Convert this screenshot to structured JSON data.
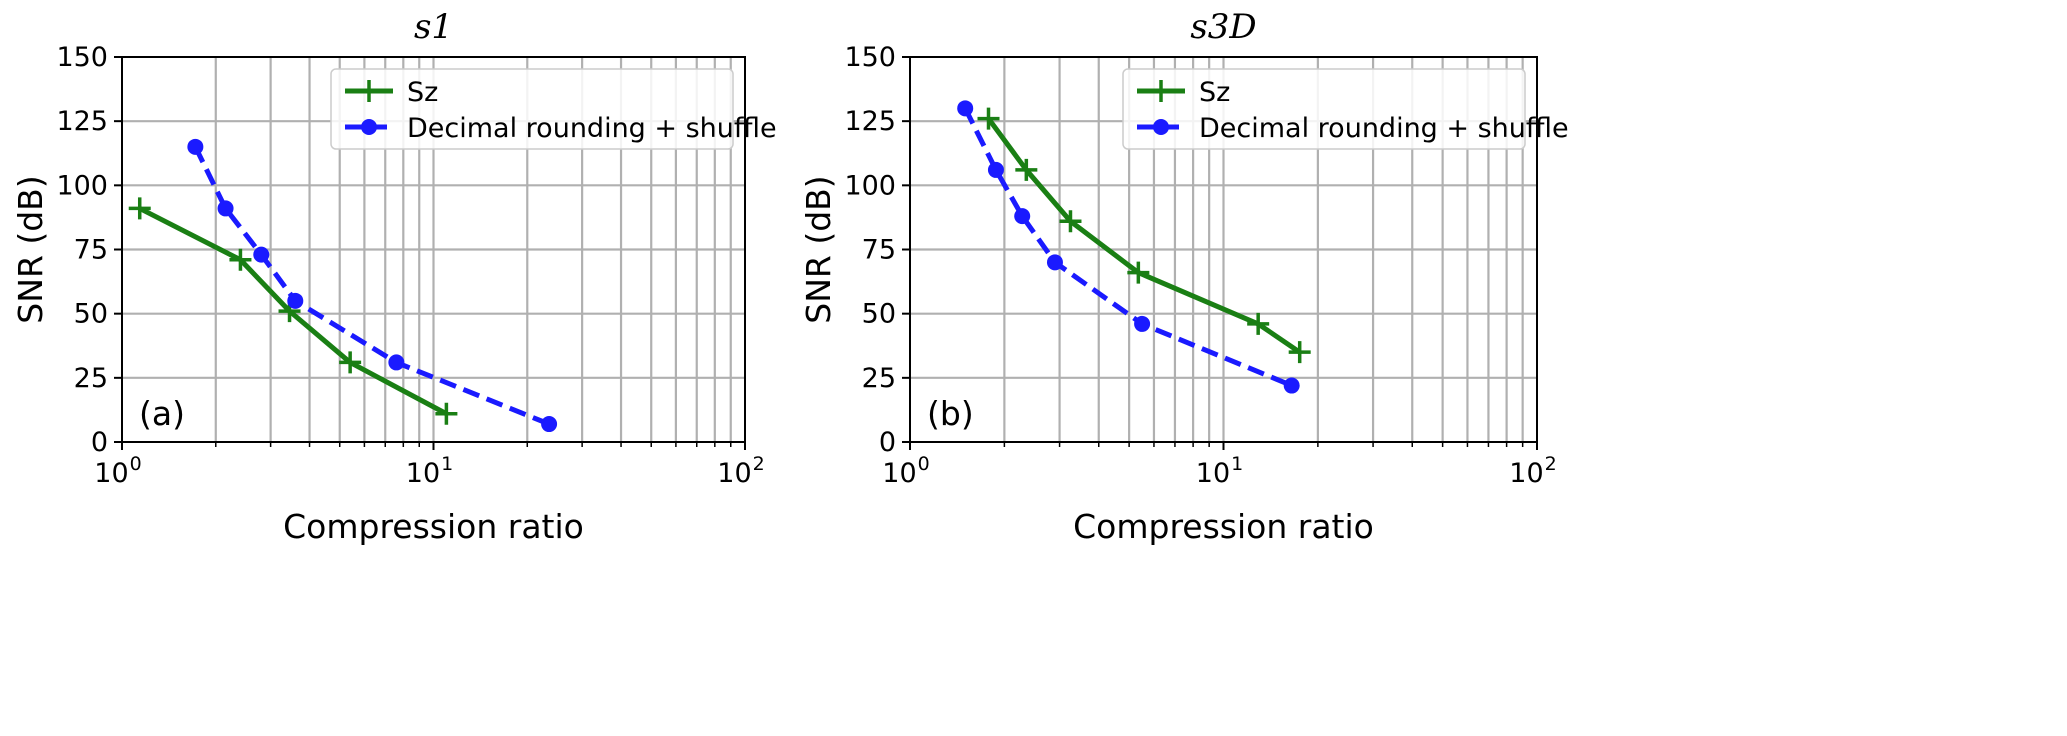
{
  "chart_data": [
    {
      "type": "line",
      "title": "s1",
      "xlabel": "Compression ratio",
      "ylabel": "SNR (dB)",
      "xscale": "log",
      "xlim": [
        1,
        100
      ],
      "ylim": [
        0,
        150
      ],
      "xticks": [
        {
          "base": "10",
          "exp": "0",
          "value": 1
        },
        {
          "base": "10",
          "exp": "1",
          "value": 10
        },
        {
          "base": "10",
          "exp": "2",
          "value": 100
        }
      ],
      "yticks": [
        0,
        25,
        50,
        75,
        100,
        125,
        150
      ],
      "grid": true,
      "legend_position": "top-right",
      "annotation": "(a)",
      "series": [
        {
          "name": "Sz",
          "color": "#1a7f14",
          "linestyle": "solid",
          "marker": "plus",
          "x": [
            1.14,
            2.4,
            3.45,
            5.4,
            11.0
          ],
          "y": [
            91,
            71,
            51,
            31,
            11
          ]
        },
        {
          "name": "Decimal rounding + shuffle",
          "color": "#1a1aff",
          "linestyle": "dashed",
          "marker": "circle",
          "x": [
            1.72,
            2.15,
            2.8,
            3.6,
            7.6,
            23.5
          ],
          "y": [
            115,
            91,
            73,
            55,
            31,
            7
          ]
        }
      ]
    },
    {
      "type": "line",
      "title": "s3D",
      "xlabel": "Compression ratio",
      "ylabel": "SNR (dB)",
      "xscale": "log",
      "xlim": [
        1,
        100
      ],
      "ylim": [
        0,
        150
      ],
      "xticks": [
        {
          "base": "10",
          "exp": "0",
          "value": 1
        },
        {
          "base": "10",
          "exp": "1",
          "value": 10
        },
        {
          "base": "10",
          "exp": "2",
          "value": 100
        }
      ],
      "yticks": [
        0,
        25,
        50,
        75,
        100,
        125,
        150
      ],
      "grid": true,
      "legend_position": "top-right",
      "annotation": "(b)",
      "series": [
        {
          "name": "Sz",
          "color": "#1a7f14",
          "linestyle": "solid",
          "marker": "plus",
          "x": [
            1.78,
            2.35,
            3.25,
            5.35,
            12.9,
            17.5
          ],
          "y": [
            126,
            106,
            86,
            66,
            46,
            35
          ]
        },
        {
          "name": "Decimal rounding + shuffle",
          "color": "#1a1aff",
          "linestyle": "dashed",
          "marker": "circle",
          "x": [
            1.5,
            1.88,
            2.28,
            2.9,
            5.5,
            16.5
          ],
          "y": [
            130,
            106,
            88,
            70,
            46,
            22
          ]
        }
      ]
    }
  ]
}
